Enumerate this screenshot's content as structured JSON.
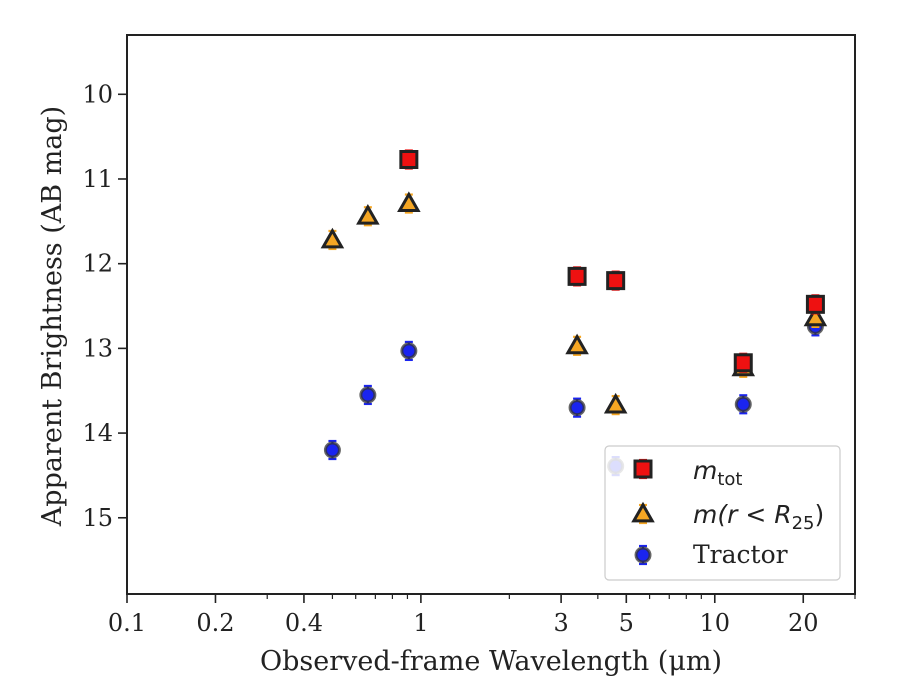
{
  "chart_data": {
    "type": "scatter",
    "xlabel": "Observed-frame Wavelength (μm)",
    "ylabel": "Apparent Brightness (AB mag)",
    "xscale": "log",
    "yaxis_inverted": true,
    "xlim": [
      0.1,
      30
    ],
    "ylim": [
      15.9,
      9.3
    ],
    "xticks": [
      {
        "value": 0.1,
        "label": "0.1"
      },
      {
        "value": 0.2,
        "label": "0.2"
      },
      {
        "value": 0.4,
        "label": "0.4"
      },
      {
        "value": 1,
        "label": "1"
      },
      {
        "value": 3,
        "label": "3"
      },
      {
        "value": 5,
        "label": "5"
      },
      {
        "value": 10,
        "label": "10"
      },
      {
        "value": 20,
        "label": "20"
      }
    ],
    "yticks": [
      {
        "value": 10,
        "label": "10"
      },
      {
        "value": 11,
        "label": "11"
      },
      {
        "value": 12,
        "label": "12"
      },
      {
        "value": 13,
        "label": "13"
      },
      {
        "value": 14,
        "label": "14"
      },
      {
        "value": 15,
        "label": "15"
      }
    ],
    "legend_position": "lower-right",
    "grid": false,
    "series": [
      {
        "name": "m_tot",
        "marker": "square",
        "color": "#ee1111",
        "points": [
          {
            "x": 0.91,
            "y": 10.77
          },
          {
            "x": 3.4,
            "y": 12.15
          },
          {
            "x": 4.6,
            "y": 12.2
          },
          {
            "x": 12.5,
            "y": 13.17
          },
          {
            "x": 22.0,
            "y": 12.48
          }
        ]
      },
      {
        "name": "m(r < R25)",
        "marker": "triangle",
        "color": "#f5a623",
        "points": [
          {
            "x": 0.5,
            "y": 11.72
          },
          {
            "x": 0.66,
            "y": 11.44
          },
          {
            "x": 0.91,
            "y": 11.29
          },
          {
            "x": 3.4,
            "y": 12.97
          },
          {
            "x": 4.6,
            "y": 13.67
          },
          {
            "x": 12.5,
            "y": 13.23
          },
          {
            "x": 22.0,
            "y": 12.64
          }
        ]
      },
      {
        "name": "Tractor",
        "marker": "circle",
        "color": "#1a24f0",
        "points": [
          {
            "x": 0.5,
            "y": 14.2
          },
          {
            "x": 0.66,
            "y": 13.55
          },
          {
            "x": 0.91,
            "y": 13.03
          },
          {
            "x": 3.4,
            "y": 13.7
          },
          {
            "x": 4.6,
            "y": 14.39
          },
          {
            "x": 12.5,
            "y": 13.66
          },
          {
            "x": 22.0,
            "y": 12.74
          }
        ]
      }
    ]
  }
}
